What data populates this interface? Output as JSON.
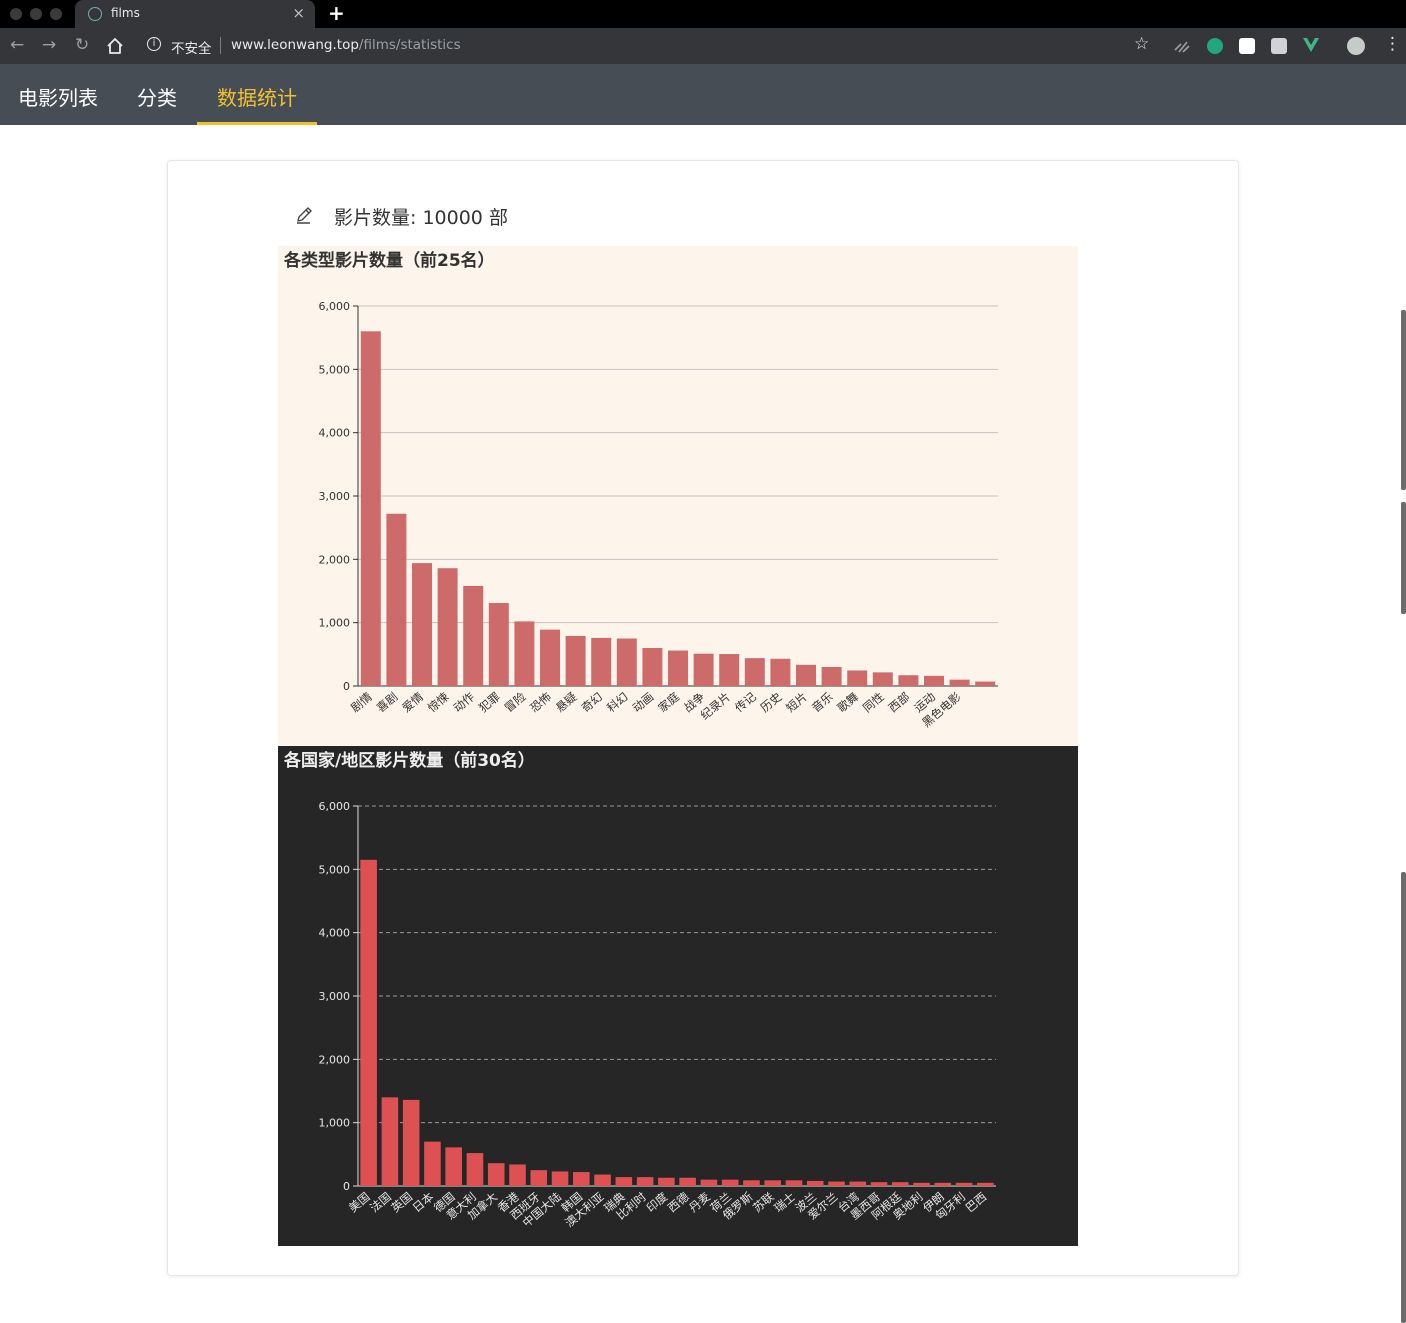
{
  "browser": {
    "tab_title": "films",
    "address_security": "不安全",
    "url_host": "www.leonwang.top",
    "url_path": "/films/statistics"
  },
  "nav": {
    "items": [
      {
        "label": "电影列表"
      },
      {
        "label": "分类"
      },
      {
        "label": "数据统计"
      }
    ],
    "active_index": 2
  },
  "summary": {
    "label": "影片数量:",
    "count": "10000",
    "unit": "部"
  },
  "colors": {
    "genre_bar": "#cd6a6a",
    "country_bar": "#dd5152",
    "genre_background": "#fdf4ec",
    "country_background": "#262626",
    "accent": "#f0c232"
  },
  "chart_data": [
    {
      "type": "bar",
      "title": "各类型影片数量（前25名）",
      "categories": [
        "剧情",
        "喜剧",
        "爱情",
        "惊悚",
        "动作",
        "犯罪",
        "冒险",
        "恐怖",
        "悬疑",
        "奇幻",
        "科幻",
        "动画",
        "家庭",
        "战争",
        "纪录片",
        "传记",
        "历史",
        "短片",
        "音乐",
        "歌舞",
        "同性",
        "西部",
        "运动",
        "黑色电影",
        ""
      ],
      "values": [
        5600,
        2720,
        1940,
        1860,
        1580,
        1310,
        1020,
        890,
        790,
        760,
        750,
        600,
        560,
        510,
        505,
        440,
        430,
        335,
        300,
        245,
        215,
        170,
        160,
        100,
        70
      ],
      "y_ticks": [
        "0",
        "1,000",
        "2,000",
        "3,000",
        "4,000",
        "5,000",
        "6,000"
      ],
      "ylim": [
        0,
        6000
      ],
      "grid": "solid",
      "theme": "light"
    },
    {
      "type": "bar",
      "title": "各国家/地区影片数量（前30名）",
      "categories": [
        "美国",
        "法国",
        "英国",
        "日本",
        "德国",
        "意大利",
        "加拿大",
        "香港",
        "西班牙",
        "中国大陆",
        "韩国",
        "澳大利亚",
        "瑞典",
        "比利时",
        "印度",
        "西德",
        "丹麦",
        "荷兰",
        "俄罗斯",
        "苏联",
        "瑞士",
        "波兰",
        "爱尔兰",
        "台湾",
        "墨西哥",
        "阿根廷",
        "奥地利",
        "伊朗",
        "匈牙利",
        "巴西"
      ],
      "values": [
        5150,
        1400,
        1360,
        700,
        610,
        520,
        360,
        340,
        250,
        230,
        220,
        180,
        140,
        140,
        130,
        130,
        100,
        100,
        90,
        90,
        90,
        80,
        70,
        70,
        60,
        60,
        50,
        50,
        50,
        50
      ],
      "y_ticks": [
        "0",
        "1,000",
        "2,000",
        "3,000",
        "4,000",
        "5,000",
        "6,000"
      ],
      "ylim": [
        0,
        6000
      ],
      "grid": "dashed",
      "theme": "dark"
    }
  ]
}
